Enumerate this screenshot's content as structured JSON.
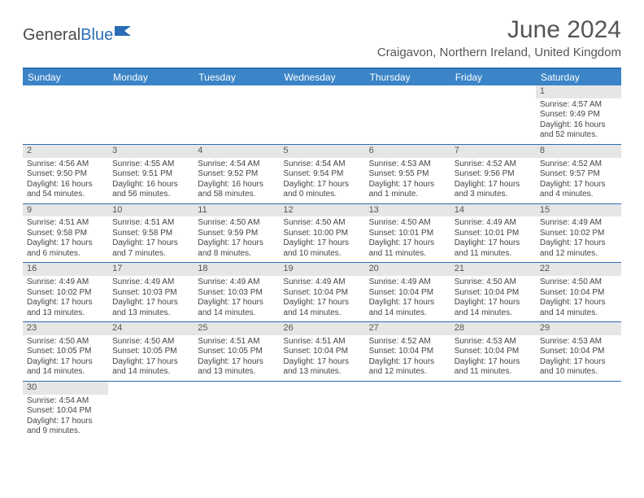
{
  "logo": {
    "text1": "General",
    "text2": "Blue"
  },
  "title": "June 2024",
  "location": "Craigavon, Northern Ireland, United Kingdom",
  "weekdays": [
    "Sunday",
    "Monday",
    "Tuesday",
    "Wednesday",
    "Thursday",
    "Friday",
    "Saturday"
  ],
  "colors": {
    "header_bg": "#3a84c7",
    "border": "#2a6db5",
    "daynum_bg": "#e6e6e6",
    "text": "#444444",
    "title_text": "#555555"
  },
  "typography": {
    "title_fontsize": 30,
    "location_fontsize": 15,
    "weekday_fontsize": 12,
    "cell_fontsize": 10
  },
  "days": [
    {
      "n": 1,
      "sr": "4:57 AM",
      "ss": "9:49 PM",
      "dl": "16 hours and 52 minutes."
    },
    {
      "n": 2,
      "sr": "4:56 AM",
      "ss": "9:50 PM",
      "dl": "16 hours and 54 minutes."
    },
    {
      "n": 3,
      "sr": "4:55 AM",
      "ss": "9:51 PM",
      "dl": "16 hours and 56 minutes."
    },
    {
      "n": 4,
      "sr": "4:54 AM",
      "ss": "9:52 PM",
      "dl": "16 hours and 58 minutes."
    },
    {
      "n": 5,
      "sr": "4:54 AM",
      "ss": "9:54 PM",
      "dl": "17 hours and 0 minutes."
    },
    {
      "n": 6,
      "sr": "4:53 AM",
      "ss": "9:55 PM",
      "dl": "17 hours and 1 minute."
    },
    {
      "n": 7,
      "sr": "4:52 AM",
      "ss": "9:56 PM",
      "dl": "17 hours and 3 minutes."
    },
    {
      "n": 8,
      "sr": "4:52 AM",
      "ss": "9:57 PM",
      "dl": "17 hours and 4 minutes."
    },
    {
      "n": 9,
      "sr": "4:51 AM",
      "ss": "9:58 PM",
      "dl": "17 hours and 6 minutes."
    },
    {
      "n": 10,
      "sr": "4:51 AM",
      "ss": "9:58 PM",
      "dl": "17 hours and 7 minutes."
    },
    {
      "n": 11,
      "sr": "4:50 AM",
      "ss": "9:59 PM",
      "dl": "17 hours and 8 minutes."
    },
    {
      "n": 12,
      "sr": "4:50 AM",
      "ss": "10:00 PM",
      "dl": "17 hours and 10 minutes."
    },
    {
      "n": 13,
      "sr": "4:50 AM",
      "ss": "10:01 PM",
      "dl": "17 hours and 11 minutes."
    },
    {
      "n": 14,
      "sr": "4:49 AM",
      "ss": "10:01 PM",
      "dl": "17 hours and 11 minutes."
    },
    {
      "n": 15,
      "sr": "4:49 AM",
      "ss": "10:02 PM",
      "dl": "17 hours and 12 minutes."
    },
    {
      "n": 16,
      "sr": "4:49 AM",
      "ss": "10:02 PM",
      "dl": "17 hours and 13 minutes."
    },
    {
      "n": 17,
      "sr": "4:49 AM",
      "ss": "10:03 PM",
      "dl": "17 hours and 13 minutes."
    },
    {
      "n": 18,
      "sr": "4:49 AM",
      "ss": "10:03 PM",
      "dl": "17 hours and 14 minutes."
    },
    {
      "n": 19,
      "sr": "4:49 AM",
      "ss": "10:04 PM",
      "dl": "17 hours and 14 minutes."
    },
    {
      "n": 20,
      "sr": "4:49 AM",
      "ss": "10:04 PM",
      "dl": "17 hours and 14 minutes."
    },
    {
      "n": 21,
      "sr": "4:50 AM",
      "ss": "10:04 PM",
      "dl": "17 hours and 14 minutes."
    },
    {
      "n": 22,
      "sr": "4:50 AM",
      "ss": "10:04 PM",
      "dl": "17 hours and 14 minutes."
    },
    {
      "n": 23,
      "sr": "4:50 AM",
      "ss": "10:05 PM",
      "dl": "17 hours and 14 minutes."
    },
    {
      "n": 24,
      "sr": "4:50 AM",
      "ss": "10:05 PM",
      "dl": "17 hours and 14 minutes."
    },
    {
      "n": 25,
      "sr": "4:51 AM",
      "ss": "10:05 PM",
      "dl": "17 hours and 13 minutes."
    },
    {
      "n": 26,
      "sr": "4:51 AM",
      "ss": "10:04 PM",
      "dl": "17 hours and 13 minutes."
    },
    {
      "n": 27,
      "sr": "4:52 AM",
      "ss": "10:04 PM",
      "dl": "17 hours and 12 minutes."
    },
    {
      "n": 28,
      "sr": "4:53 AM",
      "ss": "10:04 PM",
      "dl": "17 hours and 11 minutes."
    },
    {
      "n": 29,
      "sr": "4:53 AM",
      "ss": "10:04 PM",
      "dl": "17 hours and 10 minutes."
    },
    {
      "n": 30,
      "sr": "4:54 AM",
      "ss": "10:04 PM",
      "dl": "17 hours and 9 minutes."
    }
  ],
  "labels": {
    "sunrise": "Sunrise:",
    "sunset": "Sunset:",
    "daylight": "Daylight:"
  },
  "first_weekday_index": 6
}
